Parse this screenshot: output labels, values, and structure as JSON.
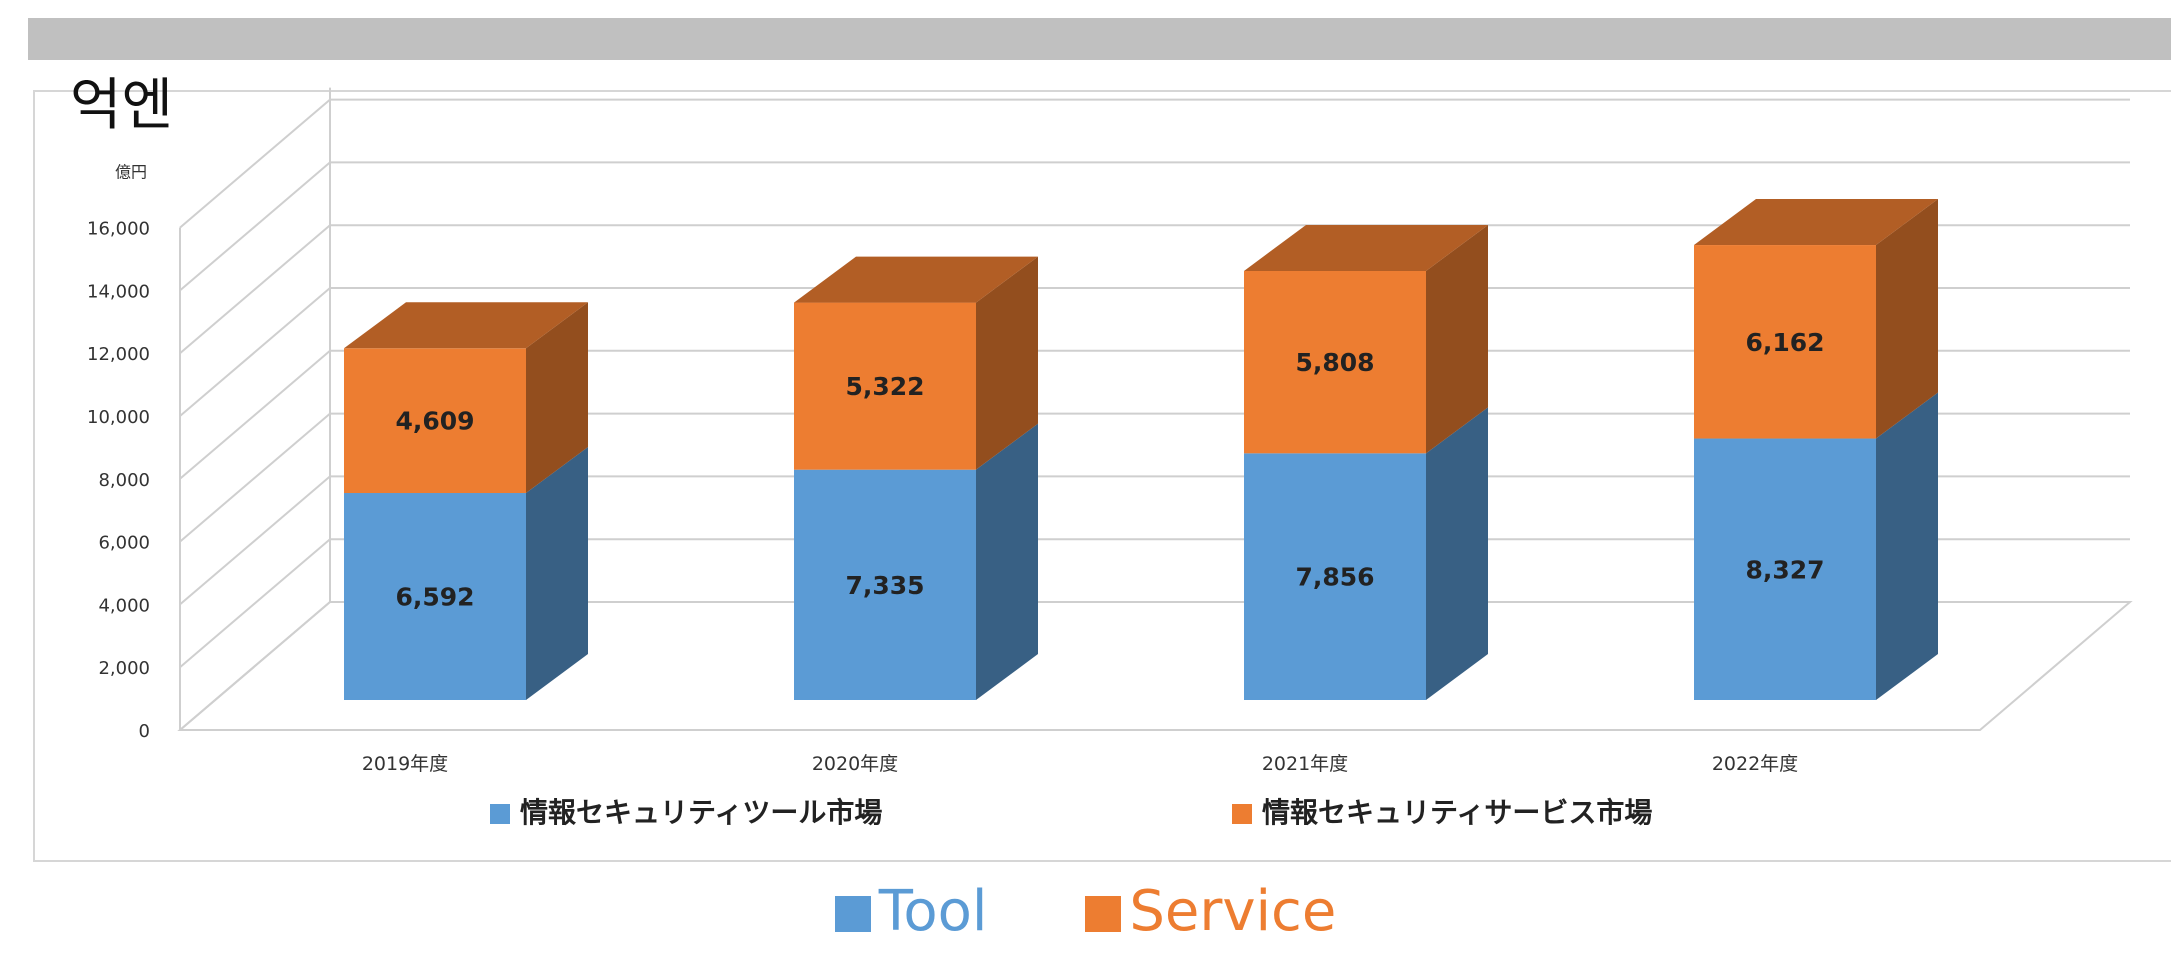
{
  "unit_label": "억엔",
  "chart_data": {
    "type": "bar",
    "stacked": true,
    "three_d": true,
    "unit": "億円",
    "categories": [
      "2019年度",
      "2020年度",
      "2021年度",
      "2022年度"
    ],
    "series": [
      {
        "name": "情報セキュリティツール市場",
        "values": [
          6592,
          7335,
          7856,
          8327
        ],
        "color": "#5b9bd5",
        "labels": [
          "6,592",
          "7,335",
          "7,856",
          "8,327"
        ]
      },
      {
        "name": "情報セキュリティサービス市場",
        "values": [
          4609,
          5322,
          5808,
          6162
        ],
        "color": "#ed7d31",
        "labels": [
          "4,609",
          "5,322",
          "5,808",
          "6,162"
        ]
      }
    ],
    "ylim": [
      0,
      16000
    ],
    "yticks": [
      "0",
      "2,000",
      "4,000",
      "6,000",
      "8,000",
      "10,000",
      "12,000",
      "14,000",
      "16,000"
    ],
    "grid": true,
    "legend": "bottom"
  },
  "legend_translation": [
    {
      "label": "Tool",
      "color": "#5b9bd5"
    },
    {
      "label": "Service",
      "color": "#ed7d31"
    }
  ]
}
